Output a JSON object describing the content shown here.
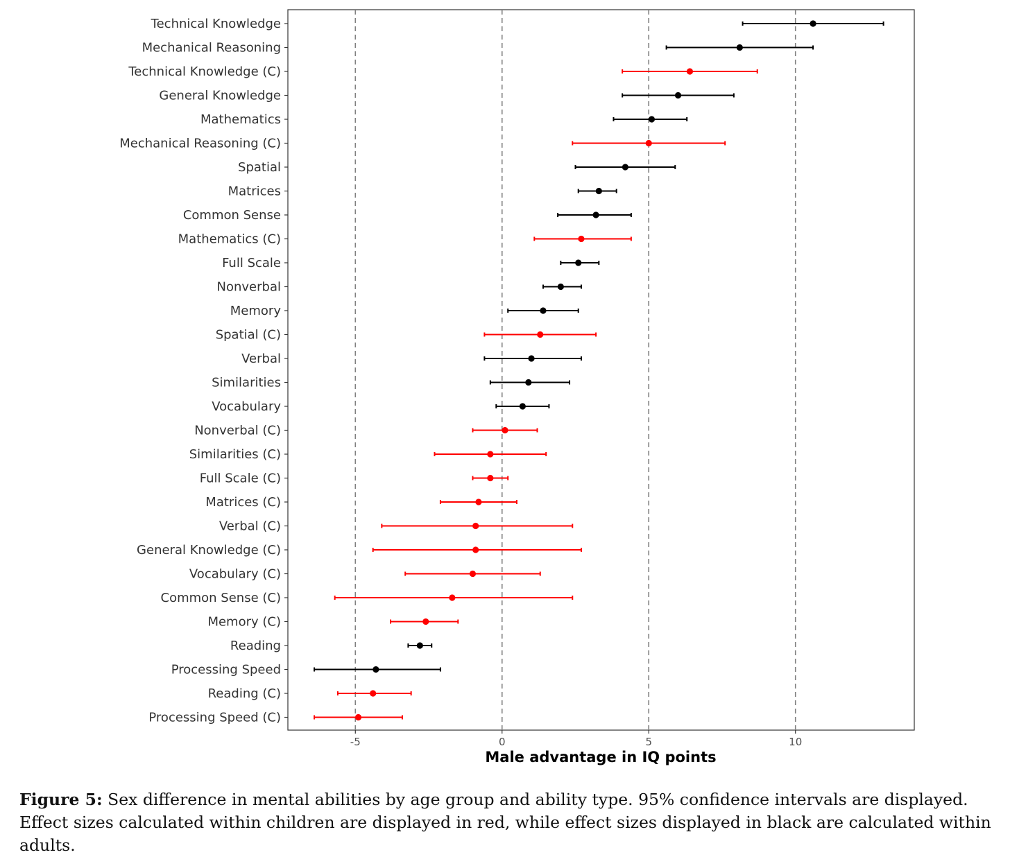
{
  "chart_data": {
    "type": "scatter",
    "subtype": "forest-plot",
    "xlabel": "Male advantage in IQ points",
    "ylabel": "",
    "xlim": [
      -7.3,
      14.05
    ],
    "xticks": [
      -5,
      0,
      5,
      10
    ],
    "xtick_labels": [
      "-5",
      "0",
      "5",
      "10"
    ],
    "reference_lines": [
      -5,
      0,
      5,
      10
    ],
    "grid": false,
    "colors": {
      "children": "#ff0000",
      "adults": "#000000"
    },
    "categories": [
      "Technical Knowledge",
      "Mechanical Reasoning",
      "Technical Knowledge (C)",
      "General Knowledge",
      "Mathematics",
      "Mechanical Reasoning (C)",
      "Spatial",
      "Matrices",
      "Common Sense",
      "Mathematics (C)",
      "Full Scale",
      "Nonverbal",
      "Memory",
      "Spatial (C)",
      "Verbal",
      "Similarities",
      "Vocabulary",
      "Nonverbal (C)",
      "Similarities (C)",
      "Full Scale (C)",
      "Matrices (C)",
      "Verbal (C)",
      "General Knowledge (C)",
      "Vocabulary (C)",
      "Common Sense (C)",
      "Memory (C)",
      "Reading",
      "Processing Speed",
      "Reading (C)",
      "Processing Speed (C)"
    ],
    "points": [
      {
        "label": "Technical Knowledge",
        "estimate": 10.6,
        "lower": 8.2,
        "upper": 13.0,
        "group": "adults"
      },
      {
        "label": "Mechanical Reasoning",
        "estimate": 8.1,
        "lower": 5.6,
        "upper": 10.6,
        "group": "adults"
      },
      {
        "label": "Technical Knowledge (C)",
        "estimate": 6.4,
        "lower": 4.1,
        "upper": 8.7,
        "group": "children"
      },
      {
        "label": "General Knowledge",
        "estimate": 6.0,
        "lower": 4.1,
        "upper": 7.9,
        "group": "adults"
      },
      {
        "label": "Mathematics",
        "estimate": 5.1,
        "lower": 3.8,
        "upper": 6.3,
        "group": "adults"
      },
      {
        "label": "Mechanical Reasoning (C)",
        "estimate": 5.0,
        "lower": 2.4,
        "upper": 7.6,
        "group": "children"
      },
      {
        "label": "Spatial",
        "estimate": 4.2,
        "lower": 2.5,
        "upper": 5.9,
        "group": "adults"
      },
      {
        "label": "Matrices",
        "estimate": 3.3,
        "lower": 2.6,
        "upper": 3.9,
        "group": "adults"
      },
      {
        "label": "Common Sense",
        "estimate": 3.2,
        "lower": 1.9,
        "upper": 4.4,
        "group": "adults"
      },
      {
        "label": "Mathematics (C)",
        "estimate": 2.7,
        "lower": 1.1,
        "upper": 4.4,
        "group": "children"
      },
      {
        "label": "Full Scale",
        "estimate": 2.6,
        "lower": 2.0,
        "upper": 3.3,
        "group": "adults"
      },
      {
        "label": "Nonverbal",
        "estimate": 2.0,
        "lower": 1.4,
        "upper": 2.7,
        "group": "adults"
      },
      {
        "label": "Memory",
        "estimate": 1.4,
        "lower": 0.2,
        "upper": 2.6,
        "group": "adults"
      },
      {
        "label": "Spatial (C)",
        "estimate": 1.3,
        "lower": -0.6,
        "upper": 3.2,
        "group": "children"
      },
      {
        "label": "Verbal",
        "estimate": 1.0,
        "lower": -0.6,
        "upper": 2.7,
        "group": "adults"
      },
      {
        "label": "Similarities",
        "estimate": 0.9,
        "lower": -0.4,
        "upper": 2.3,
        "group": "adults"
      },
      {
        "label": "Vocabulary",
        "estimate": 0.7,
        "lower": -0.2,
        "upper": 1.6,
        "group": "adults"
      },
      {
        "label": "Nonverbal (C)",
        "estimate": 0.1,
        "lower": -1.0,
        "upper": 1.2,
        "group": "children"
      },
      {
        "label": "Similarities (C)",
        "estimate": -0.4,
        "lower": -2.3,
        "upper": 1.5,
        "group": "children"
      },
      {
        "label": "Full Scale (C)",
        "estimate": -0.4,
        "lower": -1.0,
        "upper": 0.2,
        "group": "children"
      },
      {
        "label": "Matrices (C)",
        "estimate": -0.8,
        "lower": -2.1,
        "upper": 0.5,
        "group": "children"
      },
      {
        "label": "Verbal (C)",
        "estimate": -0.9,
        "lower": -4.1,
        "upper": 2.4,
        "group": "children"
      },
      {
        "label": "General Knowledge (C)",
        "estimate": -0.9,
        "lower": -4.4,
        "upper": 2.7,
        "group": "children"
      },
      {
        "label": "Vocabulary (C)",
        "estimate": -1.0,
        "lower": -3.3,
        "upper": 1.3,
        "group": "children"
      },
      {
        "label": "Common Sense (C)",
        "estimate": -1.7,
        "lower": -5.7,
        "upper": 2.4,
        "group": "children"
      },
      {
        "label": "Memory (C)",
        "estimate": -2.6,
        "lower": -3.8,
        "upper": -1.5,
        "group": "children"
      },
      {
        "label": "Reading",
        "estimate": -2.8,
        "lower": -3.2,
        "upper": -2.4,
        "group": "adults"
      },
      {
        "label": "Processing Speed",
        "estimate": -4.3,
        "lower": -6.4,
        "upper": -2.1,
        "group": "adults"
      },
      {
        "label": "Reading (C)",
        "estimate": -4.4,
        "lower": -5.6,
        "upper": -3.1,
        "group": "children"
      },
      {
        "label": "Processing Speed (C)",
        "estimate": -4.9,
        "lower": -6.4,
        "upper": -3.4,
        "group": "children"
      }
    ]
  },
  "caption": {
    "label": "Figure 5:",
    "text": " Sex difference in mental abilities by age group and ability type. 95% confidence intervals are displayed. Effect sizes calculated within children are displayed in red, while effect sizes displayed in black are calculated within adults."
  }
}
